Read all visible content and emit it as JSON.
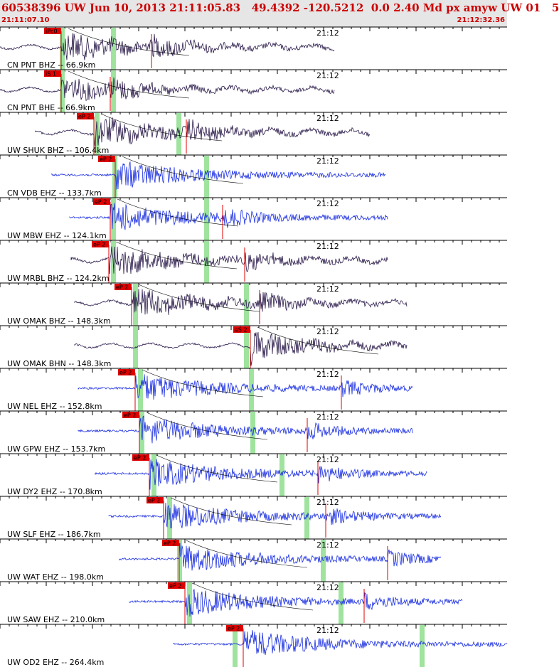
{
  "header": {
    "title": "60538396 UW Jun 10, 2013 21:11:05.83   49.4392 -120.5212  0.0 2.40 Md px amyw UW 01   5",
    "start_time": "21:11:07.10",
    "end_time": "21:12:32.36"
  },
  "minute_label": "21:12",
  "traces": [
    {
      "label": "CN PNT BHZ -- 66.9km",
      "pick": "iPc0",
      "color": "#2a1a4a",
      "amp": 1.0
    },
    {
      "label": "CN PNT BHE -- 66.9km",
      "pick": "iS 1",
      "color": "#2a1a4a",
      "amp": 0.8
    },
    {
      "label": "UW SHUK BHZ -- 106.4km",
      "pick": "eP 2",
      "color": "#2a1a4a",
      "amp": 1.0
    },
    {
      "label": "CN VDB EHZ -- 133.7km",
      "pick": "eP 2",
      "color": "#1a2ee0",
      "amp": 1.0
    },
    {
      "label": "UW MBW EHZ -- 124.1km",
      "pick": "eP 2",
      "color": "#1a2ee0",
      "amp": 1.0
    },
    {
      "label": "UW MRBL BHZ -- 124.2km",
      "pick": "eP 2",
      "color": "#2a1a4a",
      "amp": 1.0
    },
    {
      "label": "UW OMAK BHZ -- 148.3km",
      "pick": "eP 2",
      "color": "#2a1a4a",
      "amp": 1.0
    },
    {
      "label": "UW OMAK BHN -- 148.3km",
      "pick": "eS 2",
      "color": "#2a1a4a",
      "amp": 0.8
    },
    {
      "label": "UW NEL EHZ -- 152.8km",
      "pick": "eP 2",
      "color": "#1a2ee0",
      "amp": 1.0
    },
    {
      "label": "UW GPW EHZ -- 153.7km",
      "pick": "eP 2",
      "color": "#1a2ee0",
      "amp": 1.0
    },
    {
      "label": "UW DY2 EHZ -- 170.8km",
      "pick": "eP 2",
      "color": "#1a2ee0",
      "amp": 1.0
    },
    {
      "label": "UW SLF EHZ -- 186.7km",
      "pick": "eP 2",
      "color": "#1a2ee0",
      "amp": 1.0
    },
    {
      "label": "UW WAT EHZ -- 198.0km",
      "pick": "eP 2",
      "color": "#1a2ee0",
      "amp": 1.0
    },
    {
      "label": "UW SAW EHZ -- 210.0km",
      "pick": "eP 2",
      "color": "#1a2ee0",
      "amp": 1.0
    },
    {
      "label": "UW OD2 EHZ -- 264.4km",
      "pick": "eP 2",
      "color": "#1a2ee0",
      "amp": 1.0
    }
  ],
  "colors": {
    "pick_flag": "#e00000",
    "window_marker": "#9fe39f",
    "header_bg": "#e6e6e6",
    "title_text": "#cc0000"
  }
}
